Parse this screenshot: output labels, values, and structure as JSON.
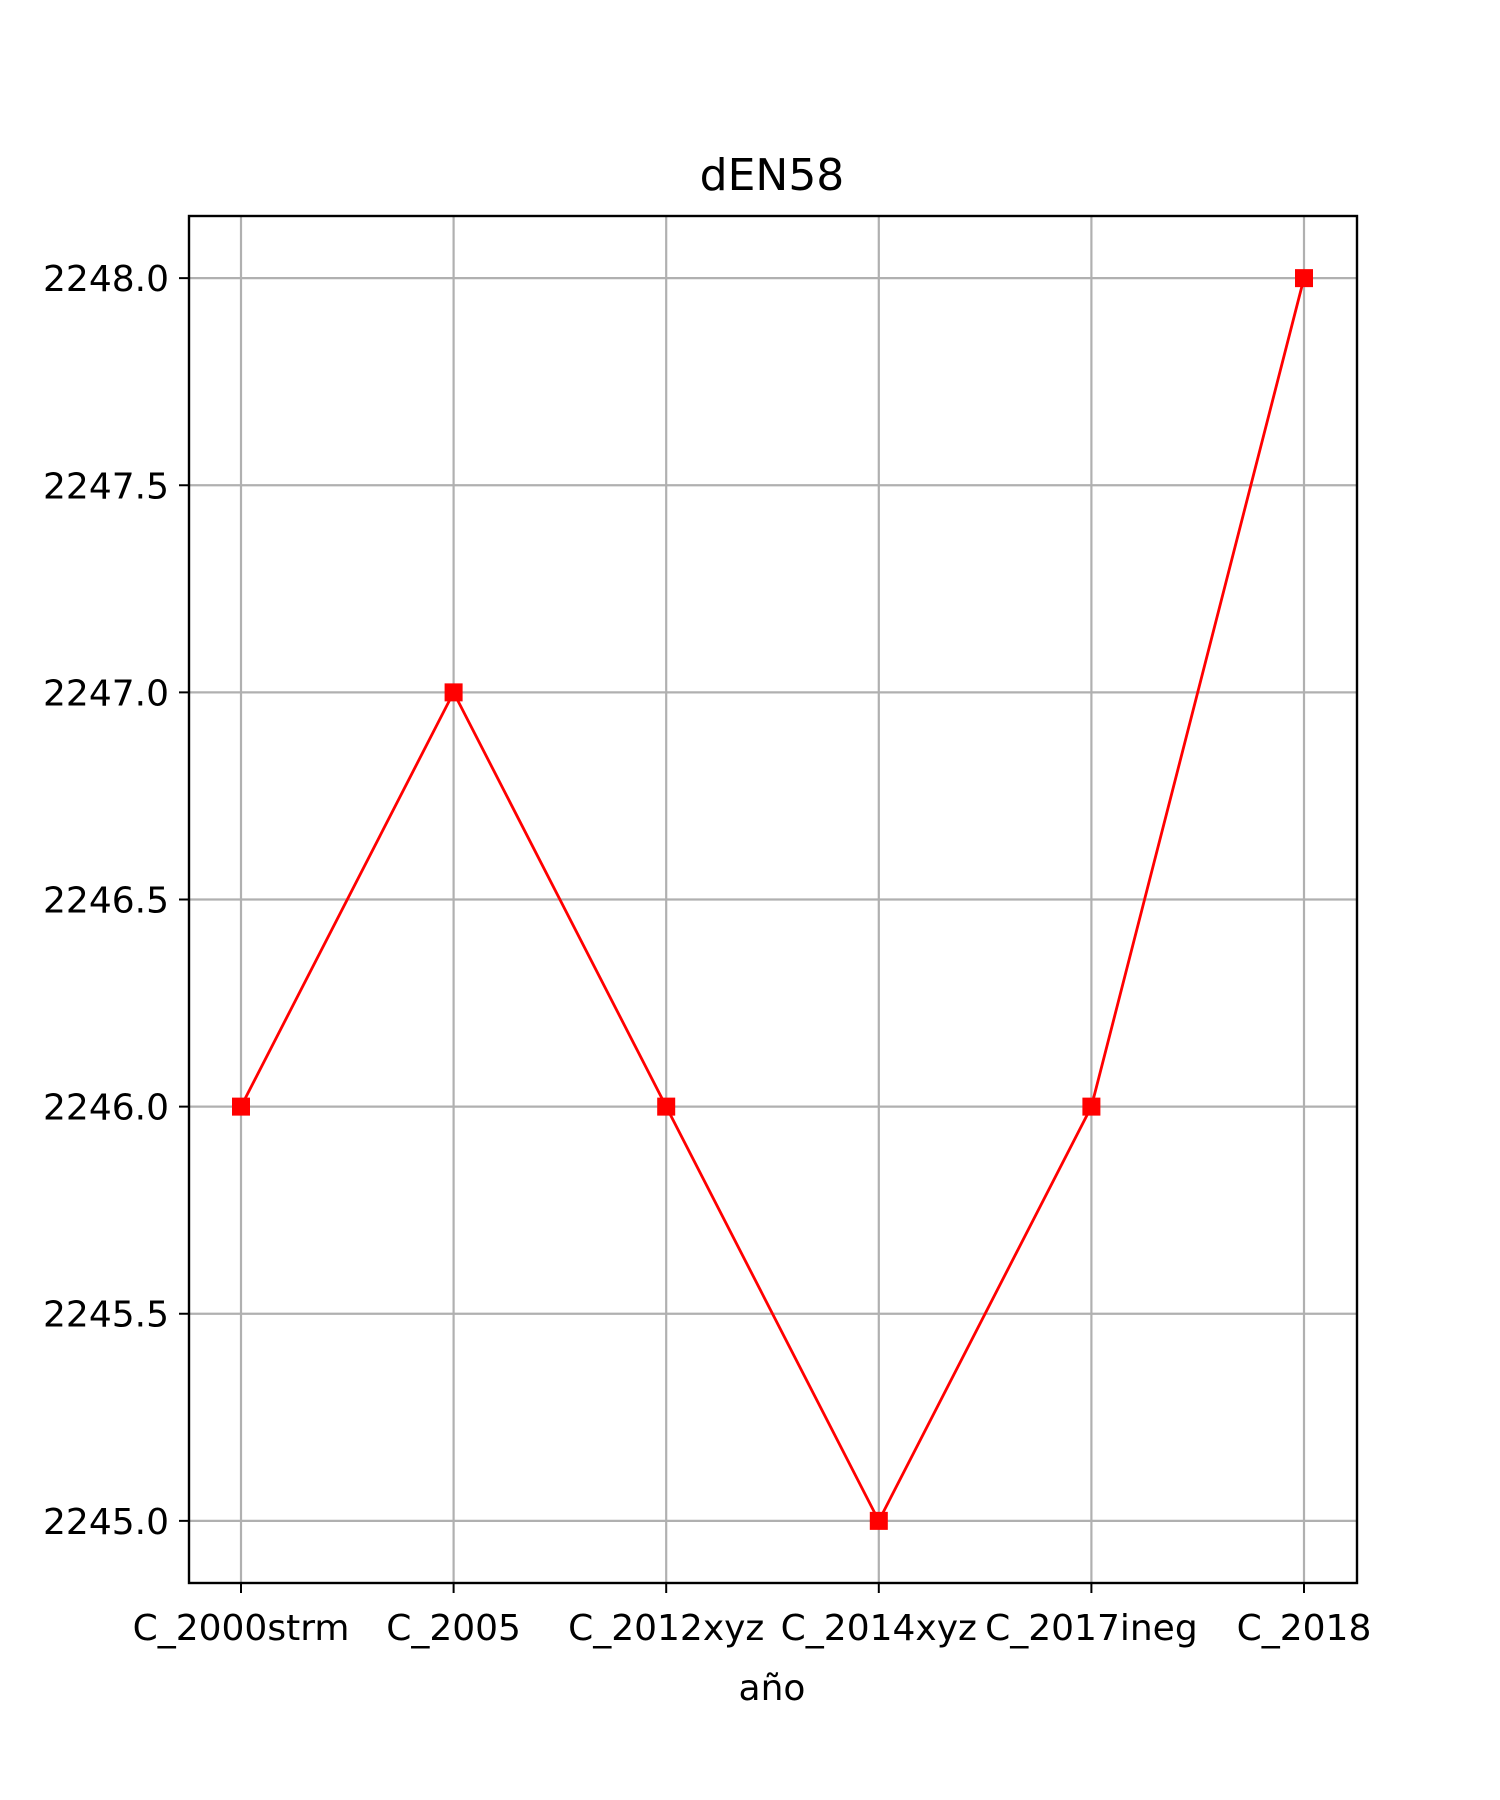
{
  "chart_data": {
    "type": "line",
    "title": "dEN58",
    "xlabel": "año",
    "ylabel": "",
    "categories": [
      "C_2000strm",
      "C_2005",
      "C_2012xyz",
      "C_2014xyz",
      "C_2017ineg",
      "C_2018"
    ],
    "series": [
      {
        "values": [
          2246.0,
          2247.0,
          2246.0,
          2245.0,
          2246.0,
          2248.0
        ]
      }
    ],
    "yticks": [
      "2245.0",
      "2245.5",
      "2246.0",
      "2246.5",
      "2247.0",
      "2247.5",
      "2248.0"
    ],
    "ylim": [
      2244.85,
      2248.15
    ],
    "grid": true,
    "line_color": "#ff0000",
    "marker": "square"
  }
}
